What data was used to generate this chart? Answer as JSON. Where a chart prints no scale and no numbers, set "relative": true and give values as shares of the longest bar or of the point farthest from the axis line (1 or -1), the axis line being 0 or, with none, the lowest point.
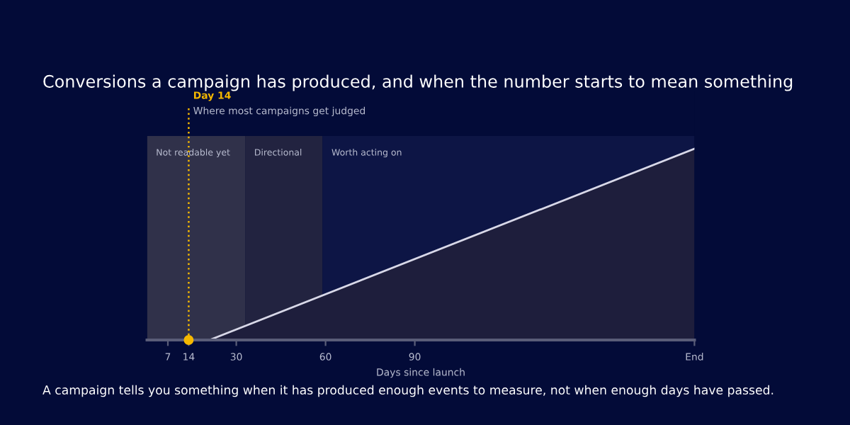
{
  "chart_data": {
    "type": "area",
    "title": "Conversions a campaign has produced, and when the number starts to mean something",
    "xlabel": "Days since launch",
    "relative": true,
    "x": [
      0,
      21,
      184
    ],
    "series": [
      {
        "color": "#d8d8e8",
        "values": [
          0,
          0,
          1
        ]
      },
      {
        "type": "scatter",
        "x": [
          14
        ],
        "color": "#f5b800",
        "values": [
          0
        ]
      }
    ],
    "xlim": [
      0,
      184
    ],
    "xticks": [
      7,
      14,
      30,
      60,
      90,
      {
        "value": 184,
        "label": "End"
      }
    ],
    "ref_lines": [
      {
        "axis": "x",
        "value": 14,
        "label": "Day 14",
        "color": "#f5b800",
        "line_style": "dotted"
      }
    ],
    "bands": [
      {
        "axis": "x",
        "from": 0,
        "to": 33,
        "label": "Not readable yet",
        "color": "#30314a"
      },
      {
        "axis": "x",
        "from": 33,
        "to": 59,
        "label": "Directional",
        "color": "#222340"
      },
      {
        "axis": "x",
        "from": 59,
        "to": 184,
        "label": "Worth acting on",
        "color": "#0d1545"
      }
    ],
    "annotations": [
      "Where most campaigns get judged",
      "A campaign tells you something when it has produced enough events to measure, not when enough days have passed."
    ],
    "grid": false,
    "legend": false
  }
}
